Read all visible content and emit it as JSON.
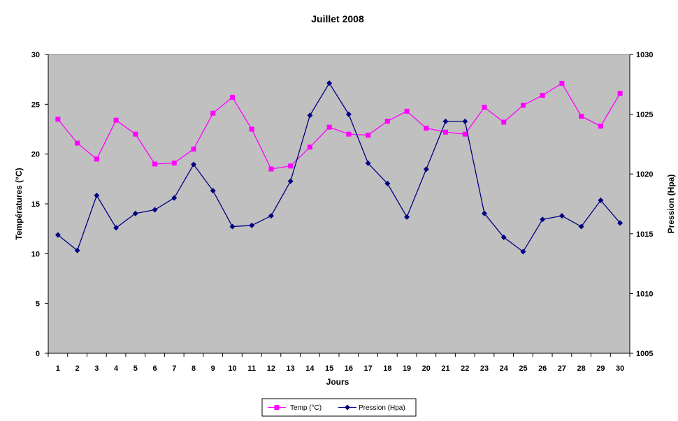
{
  "chart_data": {
    "type": "line",
    "title": "Juillet 2008",
    "xlabel": "Jours",
    "ylabel": "Températures (°C)",
    "y2label": "Pression (Hpa)",
    "ylim": [
      0,
      30
    ],
    "y2lim": [
      1005,
      1030
    ],
    "yticks": [
      "0",
      "5",
      "10",
      "15",
      "20",
      "25",
      "30"
    ],
    "y2ticks": [
      "1005",
      "1010",
      "1015",
      "1020",
      "1025",
      "1030"
    ],
    "categories": [
      "1",
      "2",
      "3",
      "4",
      "5",
      "6",
      "7",
      "8",
      "9",
      "10",
      "11",
      "12",
      "13",
      "14",
      "15",
      "16",
      "17",
      "18",
      "19",
      "20",
      "21",
      "22",
      "23",
      "24",
      "25",
      "26",
      "27",
      "28",
      "29",
      "30"
    ],
    "grid": false,
    "plot_background": "#C0C0C0",
    "legend_position": "bottom",
    "series": [
      {
        "name": "Temp (°C)",
        "axis": "left",
        "color": "#FF00FF",
        "marker": "square",
        "values": [
          23.5,
          21.1,
          19.5,
          23.4,
          22.0,
          19.0,
          19.1,
          20.5,
          24.1,
          25.7,
          22.5,
          18.5,
          18.8,
          20.7,
          22.7,
          22.0,
          21.9,
          23.3,
          24.3,
          22.6,
          22.2,
          22.0,
          24.7,
          23.2,
          24.9,
          25.9,
          27.1,
          23.8,
          22.8,
          26.1
        ]
      },
      {
        "name": "Pression (Hpa)",
        "axis": "right",
        "color": "#000080",
        "marker": "diamond",
        "values": [
          1014.9,
          1013.6,
          1018.2,
          1015.5,
          1016.7,
          1017.0,
          1018.0,
          1020.8,
          1018.6,
          1015.6,
          1015.7,
          1016.5,
          1019.4,
          1024.9,
          1027.6,
          1025.0,
          1020.9,
          1019.2,
          1016.4,
          1020.4,
          1024.4,
          1024.4,
          1016.7,
          1014.7,
          1013.5,
          1016.2,
          1016.5,
          1015.6,
          1017.8,
          1015.9
        ]
      }
    ]
  }
}
